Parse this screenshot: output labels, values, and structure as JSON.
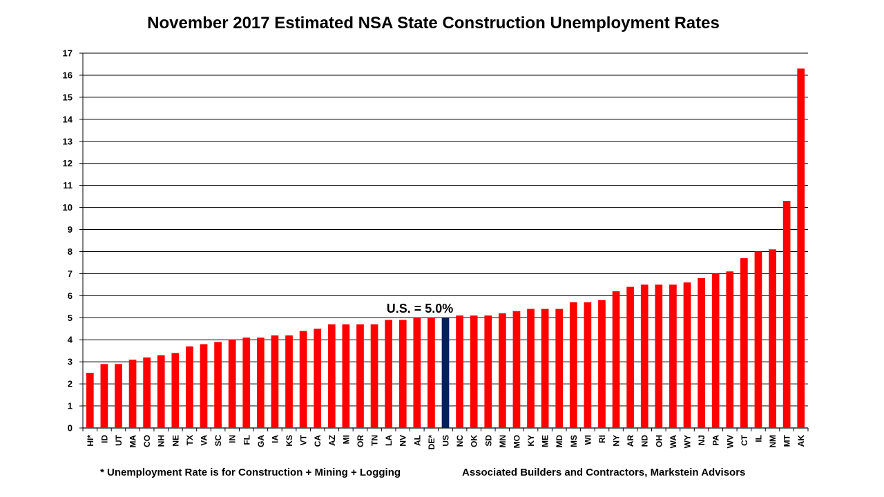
{
  "chart_data": {
    "type": "bar",
    "title": "November 2017 Estimated NSA State Construction Unemployment Rates",
    "xlabel": "",
    "ylabel": "",
    "ylim": [
      0,
      17
    ],
    "yticks": [
      0,
      1,
      2,
      3,
      4,
      5,
      6,
      7,
      8,
      9,
      10,
      11,
      12,
      13,
      14,
      15,
      16,
      17
    ],
    "grid": true,
    "legend": "none",
    "categories": [
      "HI*",
      "ID",
      "UT",
      "MA",
      "CO",
      "NH",
      "NE",
      "TX",
      "VA",
      "SC",
      "IN",
      "FL",
      "GA",
      "IA",
      "KS",
      "VT",
      "CA",
      "AZ",
      "MI",
      "OR",
      "TN",
      "LA",
      "NV",
      "AL",
      "DE*",
      "US",
      "NC",
      "OK",
      "SD",
      "MN",
      "MO",
      "KY",
      "ME",
      "MD",
      "MS",
      "WI",
      "RI",
      "NY",
      "AR",
      "ND",
      "OH",
      "WA",
      "WY",
      "NJ",
      "PA",
      "WV",
      "CT",
      "IL",
      "NM",
      "MT",
      "AK"
    ],
    "values": [
      2.5,
      2.9,
      2.9,
      3.1,
      3.2,
      3.3,
      3.4,
      3.7,
      3.8,
      3.9,
      4.0,
      4.1,
      4.1,
      4.2,
      4.2,
      4.4,
      4.5,
      4.7,
      4.7,
      4.7,
      4.7,
      4.9,
      4.9,
      5.0,
      5.0,
      5.0,
      5.1,
      5.1,
      5.1,
      5.2,
      5.3,
      5.4,
      5.4,
      5.4,
      5.7,
      5.7,
      5.8,
      6.2,
      6.4,
      6.5,
      6.5,
      6.5,
      6.6,
      6.8,
      7.0,
      7.1,
      7.7,
      8.0,
      8.1,
      10.3,
      16.3
    ],
    "highlight_category": "US",
    "annotation": "U.S. = 5.0%"
  },
  "colors": {
    "bar": "#ff0000",
    "highlight": "#002060",
    "grid": "#000000"
  },
  "footer": {
    "footnote": "* Unemployment Rate is for Construction + Mining + Logging",
    "source": "Associated Builders and Contractors, Markstein Advisors"
  }
}
